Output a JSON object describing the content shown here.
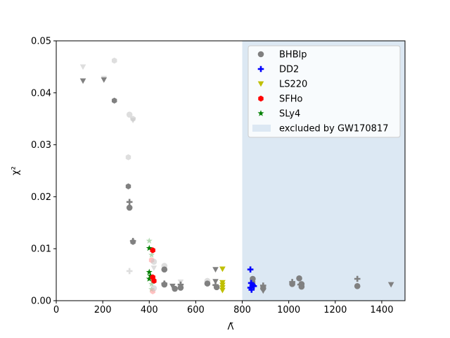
{
  "chart_data": {
    "type": "scatter",
    "xlabel": "Λ̃",
    "ylabel": "χ²",
    "xlim": [
      0,
      1500
    ],
    "ylim": [
      0,
      0.05
    ],
    "xticks": [
      "0",
      "200",
      "400",
      "600",
      "800",
      "1000",
      "1200",
      "1400"
    ],
    "yticks": [
      "0.00",
      "0.01",
      "0.02",
      "0.03",
      "0.04",
      "0.05"
    ],
    "grid": false,
    "legend_position": "top-right",
    "excluded_region": {
      "x_from": 800,
      "x_to": 1500,
      "label": "excluded by GW170817",
      "color": "#dce8f3"
    },
    "series": [
      {
        "name": "BHBlp",
        "marker": "circle",
        "color": "#808080"
      },
      {
        "name": "DD2",
        "marker": "plus",
        "color": "#0000ff"
      },
      {
        "name": "LS220",
        "marker": "triangle-down",
        "color": "#bfbf00"
      },
      {
        "name": "SFHo",
        "marker": "hexagon",
        "color": "#ff0000"
      },
      {
        "name": "SLy4",
        "marker": "star",
        "color": "#008000"
      }
    ],
    "points": [
      {
        "x": 115,
        "y": 0.045,
        "marker": "triangle-down",
        "color": "#c8c8c8",
        "alpha": 0.6
      },
      {
        "x": 115,
        "y": 0.0423,
        "marker": "triangle-down",
        "color": "#808080",
        "alpha": 1
      },
      {
        "x": 205,
        "y": 0.0428,
        "marker": "triangle-down",
        "color": "#c8c8c8",
        "alpha": 0.6
      },
      {
        "x": 205,
        "y": 0.0425,
        "marker": "triangle-down",
        "color": "#808080",
        "alpha": 1
      },
      {
        "x": 250,
        "y": 0.0462,
        "marker": "hexagon",
        "color": "#c8c8c8",
        "alpha": 0.6
      },
      {
        "x": 250,
        "y": 0.0385,
        "marker": "hexagon",
        "color": "#808080",
        "alpha": 1
      },
      {
        "x": 315,
        "y": 0.0358,
        "marker": "circle",
        "color": "#c8c8c8",
        "alpha": 0.6
      },
      {
        "x": 330,
        "y": 0.035,
        "marker": "hexagon",
        "color": "#c8c8c8",
        "alpha": 0.6
      },
      {
        "x": 330,
        "y": 0.0347,
        "marker": "triangle-down",
        "color": "#c8c8c8",
        "alpha": 0.6
      },
      {
        "x": 310,
        "y": 0.0276,
        "marker": "hexagon",
        "color": "#c8c8c8",
        "alpha": 0.6
      },
      {
        "x": 310,
        "y": 0.022,
        "marker": "hexagon",
        "color": "#808080",
        "alpha": 1
      },
      {
        "x": 315,
        "y": 0.019,
        "marker": "plus",
        "color": "#808080",
        "alpha": 1
      },
      {
        "x": 315,
        "y": 0.0179,
        "marker": "circle",
        "color": "#808080",
        "alpha": 1
      },
      {
        "x": 330,
        "y": 0.0115,
        "marker": "plus",
        "color": "#808080",
        "alpha": 1
      },
      {
        "x": 330,
        "y": 0.0113,
        "marker": "hexagon",
        "color": "#808080",
        "alpha": 1
      },
      {
        "x": 315,
        "y": 0.0057,
        "marker": "plus",
        "color": "#c8c8c8",
        "alpha": 0.6
      },
      {
        "x": 400,
        "y": 0.0115,
        "marker": "star",
        "color": "#80c080",
        "alpha": 0.6
      },
      {
        "x": 400,
        "y": 0.0101,
        "marker": "star",
        "color": "#008000",
        "alpha": 1
      },
      {
        "x": 410,
        "y": 0.0088,
        "marker": "star",
        "color": "#80c080",
        "alpha": 0.6
      },
      {
        "x": 415,
        "y": 0.0097,
        "marker": "hexagon",
        "color": "#ff0000",
        "alpha": 1
      },
      {
        "x": 410,
        "y": 0.0078,
        "marker": "hexagon",
        "color": "#ff9999",
        "alpha": 0.6
      },
      {
        "x": 420,
        "y": 0.0075,
        "marker": "circle",
        "color": "#c8c8c8",
        "alpha": 0.6
      },
      {
        "x": 420,
        "y": 0.0063,
        "marker": "triangle-down",
        "color": "#c8c8c8",
        "alpha": 0.6
      },
      {
        "x": 400,
        "y": 0.0055,
        "marker": "star",
        "color": "#008000",
        "alpha": 1
      },
      {
        "x": 405,
        "y": 0.0048,
        "marker": "star",
        "color": "#008000",
        "alpha": 1
      },
      {
        "x": 400,
        "y": 0.0042,
        "marker": "star",
        "color": "#008000",
        "alpha": 1
      },
      {
        "x": 415,
        "y": 0.0045,
        "marker": "hexagon",
        "color": "#ff0000",
        "alpha": 1
      },
      {
        "x": 420,
        "y": 0.0038,
        "marker": "hexagon",
        "color": "#ff0000",
        "alpha": 1
      },
      {
        "x": 410,
        "y": 0.0032,
        "marker": "star",
        "color": "#80c080",
        "alpha": 0.6
      },
      {
        "x": 410,
        "y": 0.0022,
        "marker": "star",
        "color": "#80c080",
        "alpha": 0.6
      },
      {
        "x": 415,
        "y": 0.0018,
        "marker": "hexagon",
        "color": "#ff9999",
        "alpha": 0.6
      },
      {
        "x": 420,
        "y": 0.0024,
        "marker": "circle",
        "color": "#c8c8c8",
        "alpha": 0.6
      },
      {
        "x": 465,
        "y": 0.0067,
        "marker": "circle",
        "color": "#c8c8c8",
        "alpha": 0.6
      },
      {
        "x": 465,
        "y": 0.006,
        "marker": "circle",
        "color": "#808080",
        "alpha": 1
      },
      {
        "x": 465,
        "y": 0.0033,
        "marker": "plus",
        "color": "#808080",
        "alpha": 1
      },
      {
        "x": 465,
        "y": 0.0031,
        "marker": "circle",
        "color": "#808080",
        "alpha": 1
      },
      {
        "x": 500,
        "y": 0.0028,
        "marker": "triangle-down",
        "color": "#808080",
        "alpha": 1
      },
      {
        "x": 510,
        "y": 0.0023,
        "marker": "circle",
        "color": "#808080",
        "alpha": 1
      },
      {
        "x": 535,
        "y": 0.0036,
        "marker": "triangle-down",
        "color": "#c8c8c8",
        "alpha": 0.6
      },
      {
        "x": 535,
        "y": 0.0031,
        "marker": "plus",
        "color": "#808080",
        "alpha": 1
      },
      {
        "x": 535,
        "y": 0.0025,
        "marker": "circle",
        "color": "#808080",
        "alpha": 1
      },
      {
        "x": 650,
        "y": 0.0038,
        "marker": "circle",
        "color": "#c8c8c8",
        "alpha": 0.6
      },
      {
        "x": 650,
        "y": 0.0033,
        "marker": "circle",
        "color": "#808080",
        "alpha": 1
      },
      {
        "x": 685,
        "y": 0.006,
        "marker": "triangle-down",
        "color": "#808080",
        "alpha": 1
      },
      {
        "x": 685,
        "y": 0.0037,
        "marker": "triangle-down",
        "color": "#808080",
        "alpha": 1
      },
      {
        "x": 685,
        "y": 0.003,
        "marker": "plus",
        "color": "#808080",
        "alpha": 1
      },
      {
        "x": 690,
        "y": 0.0026,
        "marker": "circle",
        "color": "#808080",
        "alpha": 1
      },
      {
        "x": 715,
        "y": 0.0061,
        "marker": "triangle-down",
        "color": "#bfbf00",
        "alpha": 1
      },
      {
        "x": 715,
        "y": 0.0035,
        "marker": "triangle-down",
        "color": "#bfbf00",
        "alpha": 1
      },
      {
        "x": 715,
        "y": 0.003,
        "marker": "triangle-down",
        "color": "#bfbf00",
        "alpha": 1
      },
      {
        "x": 715,
        "y": 0.0025,
        "marker": "triangle-down",
        "color": "#bfbf00",
        "alpha": 1
      },
      {
        "x": 715,
        "y": 0.002,
        "marker": "triangle-down",
        "color": "#bfbf00",
        "alpha": 1
      },
      {
        "x": 835,
        "y": 0.006,
        "marker": "plus",
        "color": "#0000ff",
        "alpha": 1
      },
      {
        "x": 845,
        "y": 0.0042,
        "marker": "circle",
        "color": "#808080",
        "alpha": 1
      },
      {
        "x": 845,
        "y": 0.0035,
        "marker": "hexagon",
        "color": "#808080",
        "alpha": 1
      },
      {
        "x": 838,
        "y": 0.0034,
        "marker": "plus",
        "color": "#0000ff",
        "alpha": 1
      },
      {
        "x": 845,
        "y": 0.003,
        "marker": "plus",
        "color": "#0000ff",
        "alpha": 1
      },
      {
        "x": 835,
        "y": 0.0025,
        "marker": "plus",
        "color": "#0000ff",
        "alpha": 1
      },
      {
        "x": 840,
        "y": 0.0021,
        "marker": "plus",
        "color": "#0000ff",
        "alpha": 1
      },
      {
        "x": 850,
        "y": 0.0028,
        "marker": "plus",
        "color": "#0000ff",
        "alpha": 1
      },
      {
        "x": 890,
        "y": 0.0029,
        "marker": "plus",
        "color": "#808080",
        "alpha": 1
      },
      {
        "x": 890,
        "y": 0.0024,
        "marker": "circle",
        "color": "#808080",
        "alpha": 1
      },
      {
        "x": 890,
        "y": 0.0019,
        "marker": "triangle-down",
        "color": "#808080",
        "alpha": 1
      },
      {
        "x": 1015,
        "y": 0.0036,
        "marker": "plus",
        "color": "#808080",
        "alpha": 1
      },
      {
        "x": 1015,
        "y": 0.0032,
        "marker": "circle",
        "color": "#808080",
        "alpha": 1
      },
      {
        "x": 1045,
        "y": 0.0043,
        "marker": "circle",
        "color": "#808080",
        "alpha": 1
      },
      {
        "x": 1050,
        "y": 0.0031,
        "marker": "plus",
        "color": "#808080",
        "alpha": 1
      },
      {
        "x": 1055,
        "y": 0.0027,
        "marker": "circle",
        "color": "#808080",
        "alpha": 1
      },
      {
        "x": 1055,
        "y": 0.0032,
        "marker": "circle",
        "color": "#808080",
        "alpha": 1
      },
      {
        "x": 1295,
        "y": 0.0042,
        "marker": "plus",
        "color": "#808080",
        "alpha": 1
      },
      {
        "x": 1295,
        "y": 0.0028,
        "marker": "circle",
        "color": "#808080",
        "alpha": 1
      },
      {
        "x": 1440,
        "y": 0.0031,
        "marker": "triangle-down",
        "color": "#808080",
        "alpha": 1
      }
    ]
  }
}
